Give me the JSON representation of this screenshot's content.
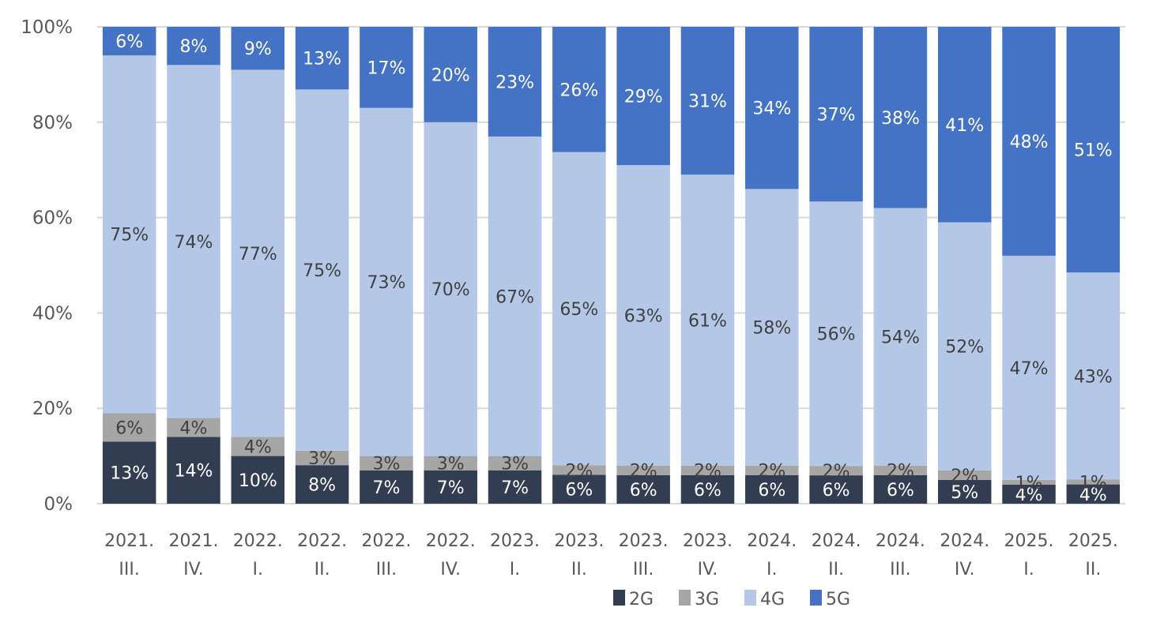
{
  "chart_data": {
    "type": "bar",
    "stacked": true,
    "percent": true,
    "title": "",
    "xlabel": "",
    "ylabel": "",
    "ylim": [
      0,
      100
    ],
    "yticks": [
      "0%",
      "20%",
      "40%",
      "60%",
      "80%",
      "100%"
    ],
    "grid": true,
    "legend_position": "bottom",
    "categories": [
      [
        "2021.",
        "III."
      ],
      [
        "2021.",
        "IV."
      ],
      [
        "2022.",
        "I."
      ],
      [
        "2022.",
        "II."
      ],
      [
        "2022.",
        "III."
      ],
      [
        "2022.",
        "IV."
      ],
      [
        "2023.",
        "I."
      ],
      [
        "2023.",
        "II."
      ],
      [
        "2023.",
        "III."
      ],
      [
        "2023.",
        "IV."
      ],
      [
        "2024.",
        "I."
      ],
      [
        "2024.",
        "II."
      ],
      [
        "2024.",
        "III."
      ],
      [
        "2024.",
        "IV."
      ],
      [
        "2025.",
        "I."
      ],
      [
        "2025.",
        "II."
      ]
    ],
    "series": [
      {
        "name": "2G",
        "color": "#323D52",
        "label_color": "#ffffff",
        "values": [
          13,
          14,
          10,
          8,
          7,
          7,
          7,
          6,
          6,
          6,
          6,
          6,
          6,
          5,
          4,
          4
        ]
      },
      {
        "name": "3G",
        "color": "#A6A6A6",
        "label_color": "#404040",
        "values": [
          6,
          4,
          4,
          3,
          3,
          3,
          3,
          2,
          2,
          2,
          2,
          2,
          2,
          2,
          1,
          1
        ]
      },
      {
        "name": "4G",
        "color": "#B4C7E7",
        "label_color": "#404040",
        "values": [
          75,
          74,
          77,
          75,
          73,
          70,
          67,
          65,
          63,
          61,
          58,
          56,
          54,
          52,
          47,
          43
        ]
      },
      {
        "name": "5G",
        "color": "#4472C4",
        "label_color": "#ffffff",
        "values": [
          6,
          8,
          9,
          13,
          17,
          20,
          23,
          26,
          29,
          31,
          34,
          37,
          38,
          41,
          48,
          51
        ]
      }
    ]
  }
}
